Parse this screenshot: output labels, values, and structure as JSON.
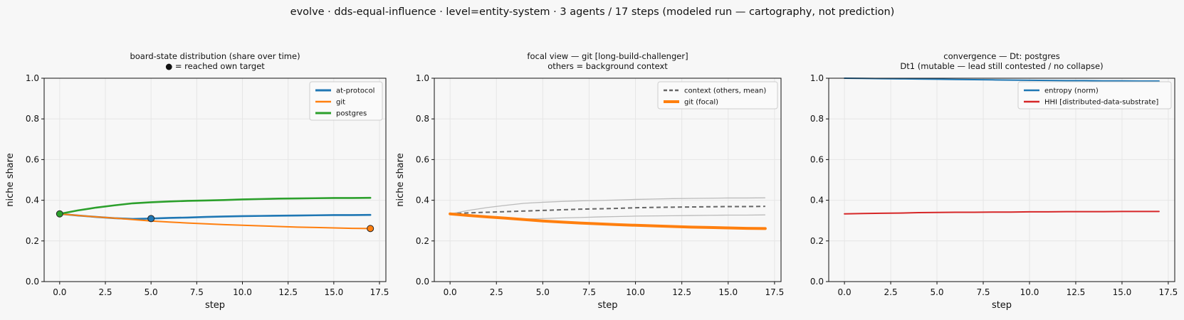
{
  "suptitle": "evolve · dds-equal-influence · level=entity-system · 3 agents / 17 steps   (modeled run — cartography, not prediction)",
  "colors": {
    "background": "#f7f7f7",
    "at-protocol": "#1f77b4",
    "git": "#ff7f0e",
    "postgres": "#2ca02c",
    "context": "#666666",
    "background_lines": "#bbbbbb",
    "hhi": "#d62728",
    "grid": "#e6e6e6"
  },
  "chart_data": [
    {
      "type": "line",
      "title": [
        "board-state distribution (share over time)",
        "● = reached own target"
      ],
      "xlabel": "step",
      "ylabel": "niche share",
      "xlim": [
        -0.85,
        17.85
      ],
      "ylim": [
        0,
        1
      ],
      "xticks": [
        "0.0",
        "2.5",
        "5.0",
        "7.5",
        "10.0",
        "12.5",
        "15.0",
        "17.5"
      ],
      "yticks": [
        "0.0",
        "0.2",
        "0.4",
        "0.6",
        "0.8",
        "1.0"
      ],
      "grid": true,
      "legend": "top-right",
      "x": [
        0,
        1,
        2,
        3,
        4,
        5,
        6,
        7,
        8,
        9,
        10,
        11,
        12,
        13,
        14,
        15,
        16,
        17
      ],
      "series": [
        {
          "name": "at-protocol",
          "color": "#1f77b4",
          "width": 2.6,
          "values": [
            0.333,
            0.325,
            0.318,
            0.312,
            0.308,
            0.31,
            0.313,
            0.315,
            0.318,
            0.32,
            0.322,
            0.323,
            0.324,
            0.325,
            0.326,
            0.327,
            0.327,
            0.328
          ],
          "marker": {
            "x": 5,
            "y": 0.31
          }
        },
        {
          "name": "git",
          "color": "#ff7f0e",
          "width": 2.0,
          "values": [
            0.333,
            0.325,
            0.318,
            0.312,
            0.305,
            0.298,
            0.293,
            0.288,
            0.284,
            0.28,
            0.277,
            0.274,
            0.271,
            0.268,
            0.266,
            0.264,
            0.262,
            0.261
          ],
          "marker": {
            "x": 17,
            "y": 0.261
          }
        },
        {
          "name": "postgres",
          "color": "#2ca02c",
          "width": 2.6,
          "values": [
            0.333,
            0.35,
            0.364,
            0.375,
            0.385,
            0.39,
            0.394,
            0.397,
            0.399,
            0.401,
            0.404,
            0.406,
            0.408,
            0.409,
            0.41,
            0.411,
            0.411,
            0.412
          ],
          "marker": {
            "x": 0,
            "y": 0.333
          }
        }
      ]
    },
    {
      "type": "line",
      "title": [
        "focal view — git  [long-build-challenger]",
        "others = background context"
      ],
      "xlabel": "step",
      "ylabel": "niche share",
      "xlim": [
        -0.85,
        17.85
      ],
      "ylim": [
        0,
        1
      ],
      "xticks": [
        "0.0",
        "2.5",
        "5.0",
        "7.5",
        "10.0",
        "12.5",
        "15.0",
        "17.5"
      ],
      "yticks": [
        "0.0",
        "0.2",
        "0.4",
        "0.6",
        "0.8",
        "1.0"
      ],
      "grid": true,
      "legend": "top-right",
      "x": [
        0,
        1,
        2,
        3,
        4,
        5,
        6,
        7,
        8,
        9,
        10,
        11,
        12,
        13,
        14,
        15,
        16,
        17
      ],
      "background_series": [
        {
          "values": [
            0.333,
            0.35,
            0.364,
            0.375,
            0.385,
            0.39,
            0.394,
            0.397,
            0.399,
            0.401,
            0.404,
            0.406,
            0.408,
            0.409,
            0.41,
            0.411,
            0.411,
            0.412
          ]
        },
        {
          "values": [
            0.333,
            0.325,
            0.318,
            0.312,
            0.308,
            0.31,
            0.313,
            0.315,
            0.318,
            0.32,
            0.322,
            0.323,
            0.324,
            0.325,
            0.326,
            0.327,
            0.327,
            0.328
          ]
        }
      ],
      "series": [
        {
          "name": "context (others, mean)",
          "color": "#666666",
          "width": 2.0,
          "dash": "6,4",
          "values": [
            0.333,
            0.338,
            0.341,
            0.344,
            0.347,
            0.35,
            0.353,
            0.356,
            0.358,
            0.36,
            0.363,
            0.365,
            0.366,
            0.367,
            0.368,
            0.369,
            0.369,
            0.37
          ]
        },
        {
          "name": "git (focal)",
          "color": "#ff7f0e",
          "width": 4.0,
          "values": [
            0.333,
            0.325,
            0.318,
            0.312,
            0.305,
            0.298,
            0.293,
            0.288,
            0.284,
            0.28,
            0.277,
            0.274,
            0.271,
            0.268,
            0.266,
            0.264,
            0.262,
            0.261
          ]
        }
      ]
    },
    {
      "type": "line",
      "title": [
        "convergence — Dt: postgres",
        "Dt1 (mutable — lead still contested / no collapse)"
      ],
      "xlabel": "step",
      "ylabel": "",
      "xlim": [
        -0.85,
        17.85
      ],
      "ylim": [
        0,
        1
      ],
      "xticks": [
        "0.0",
        "2.5",
        "5.0",
        "7.5",
        "10.0",
        "12.5",
        "15.0",
        "17.5"
      ],
      "yticks": [
        "0.0",
        "0.2",
        "0.4",
        "0.6",
        "0.8",
        "1.0"
      ],
      "grid": true,
      "legend": "top-right",
      "x": [
        0,
        1,
        2,
        3,
        4,
        5,
        6,
        7,
        8,
        9,
        10,
        11,
        12,
        13,
        14,
        15,
        16,
        17
      ],
      "series": [
        {
          "name": "entropy (norm)",
          "color": "#1f77b4",
          "width": 2.0,
          "values": [
            1.0,
            0.999,
            0.998,
            0.997,
            0.996,
            0.995,
            0.994,
            0.993,
            0.992,
            0.991,
            0.99,
            0.989,
            0.988,
            0.988,
            0.987,
            0.987,
            0.986,
            0.986
          ]
        },
        {
          "name": "HHI [distributed-data-substrate]",
          "color": "#d62728",
          "width": 2.0,
          "values": [
            0.333,
            0.335,
            0.336,
            0.337,
            0.339,
            0.34,
            0.341,
            0.341,
            0.342,
            0.342,
            0.343,
            0.343,
            0.344,
            0.344,
            0.344,
            0.345,
            0.345,
            0.345
          ]
        }
      ]
    }
  ]
}
